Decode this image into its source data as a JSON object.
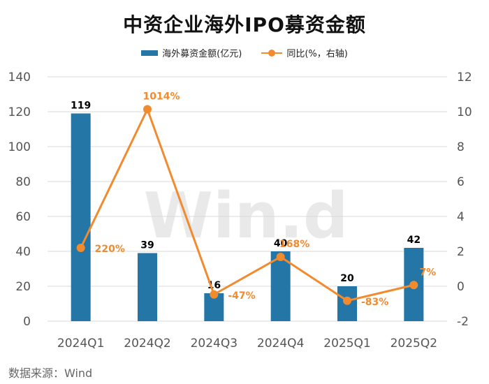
{
  "title": "中资企业海外IPO募资金额",
  "source": "数据来源：Wind",
  "watermark": "Win.d",
  "legend": {
    "bar_label": "海外募资金额(亿元)",
    "line_label": "同比(%，右轴)"
  },
  "colors": {
    "bar": "#2376a6",
    "line": "#f28a2e",
    "bar_label": "#000000",
    "line_label": "#f28a2e"
  },
  "chart_data": {
    "type": "bar",
    "categories": [
      "2024Q1",
      "2024Q2",
      "2024Q3",
      "2024Q4",
      "2025Q1",
      "2025Q2"
    ],
    "series": [
      {
        "name": "海外募资金额(亿元)",
        "type": "bar",
        "axis": "left",
        "values": [
          119,
          39,
          16,
          40,
          20,
          42
        ],
        "labels": [
          "119",
          "39",
          "16",
          "40",
          "20",
          "42"
        ]
      },
      {
        "name": "同比(%，右轴)",
        "type": "line",
        "axis": "right",
        "values": [
          2.2,
          10.14,
          -0.47,
          1.68,
          -0.83,
          0.07
        ],
        "labels": [
          "220%",
          "1014%",
          "-47%",
          "168%",
          "-83%",
          "7%"
        ]
      }
    ],
    "left_axis": {
      "min": 0,
      "max": 140,
      "ticks": [
        0,
        20,
        40,
        60,
        80,
        100,
        120,
        140
      ]
    },
    "right_axis": {
      "min": -2,
      "max": 12,
      "ticks": [
        -2,
        0,
        2,
        4,
        6,
        8,
        10,
        12
      ]
    },
    "grid": true,
    "legend_position": "top-center"
  }
}
